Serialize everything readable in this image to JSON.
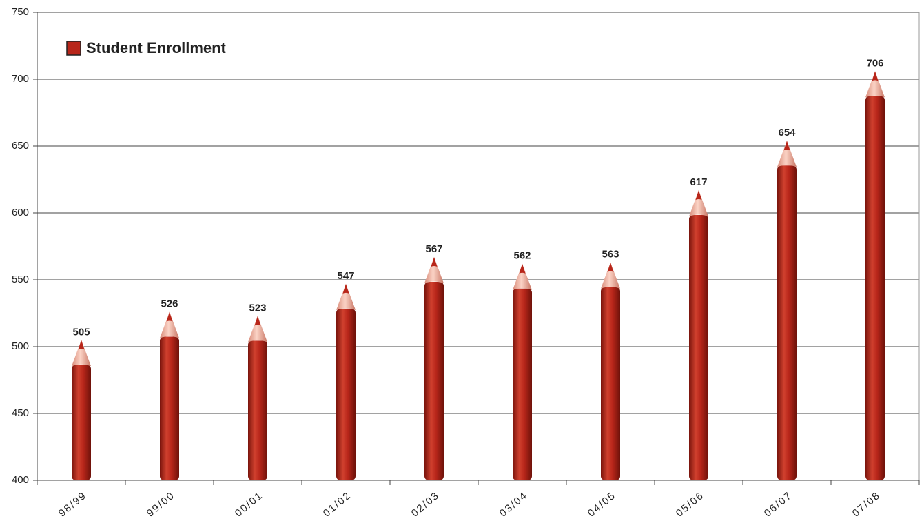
{
  "chart_data": {
    "type": "bar",
    "categories": [
      "98/99",
      "99/00",
      "00/01",
      "01/02",
      "02/03",
      "03/04",
      "04/05",
      "05/06",
      "06/07",
      "07/08"
    ],
    "series": [
      {
        "name": "Student Enrollment",
        "color": "#b8261a",
        "values": [
          505,
          526,
          523,
          547,
          567,
          562,
          563,
          617,
          654,
          706
        ]
      }
    ],
    "ylim": [
      400,
      750
    ],
    "yticks": [
      400,
      450,
      500,
      550,
      600,
      650,
      700,
      750
    ],
    "grid": true,
    "legend": "top-left"
  }
}
